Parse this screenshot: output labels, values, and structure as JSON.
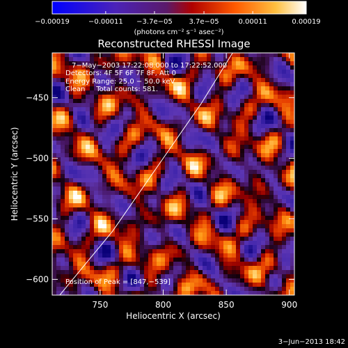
{
  "chart_data": {
    "type": "heatmap",
    "title": "Reconstructed RHESSI Image",
    "xlabel": "Heliocentric X (arcsec)",
    "ylabel": "Heliocentric Y (arcsec)",
    "xlim": [
      712,
      904
    ],
    "ylim": [
      -613,
      -413
    ],
    "x_ticks": [
      750,
      800,
      850,
      900
    ],
    "x_tick_labels": [
      "750",
      "800",
      "850",
      "900"
    ],
    "y_ticks": [
      -450,
      -500,
      -550,
      -600
    ],
    "y_tick_labels": [
      "−450",
      "−500",
      "−550",
      "−600"
    ],
    "colorbar": {
      "colormap": "blue-purple-red-orange-yellow-white",
      "range": [
        -0.00019,
        0.00019
      ],
      "ticks": [
        -0.00019,
        -0.00011,
        -3.7e-05,
        3.7e-05,
        0.00011,
        0.00019
      ],
      "tick_labels": [
        "−0.00019",
        "−0.00011",
        "−3.7e−05",
        "3.7e−05",
        "0.00011",
        "0.00019"
      ],
      "units_label": "(photons cm⁻² s⁻¹ asec⁻²)"
    },
    "annotations": [
      "7−May−2003 17:22:08.000 to 17:22:52.000",
      "Detectors: 4F 5F 6F 7F 8F, Att 0",
      "Energy Range: 25.0 − 50.0 keV",
      "Clean     Total counts: 581.",
      "Position of Peak = [847,−539]"
    ],
    "peak_position": [
      847,
      -539
    ],
    "limb_curve": [
      [
        718,
        -613
      ],
      [
        760,
        -560
      ],
      [
        800,
        -500
      ],
      [
        830,
        -455
      ],
      [
        855,
        -413
      ]
    ]
  },
  "footer_timestamp": "3−Jun−2013 18:42",
  "colors": {
    "background": "#000000",
    "text": "#ffffff",
    "limb": "#ffffff"
  }
}
